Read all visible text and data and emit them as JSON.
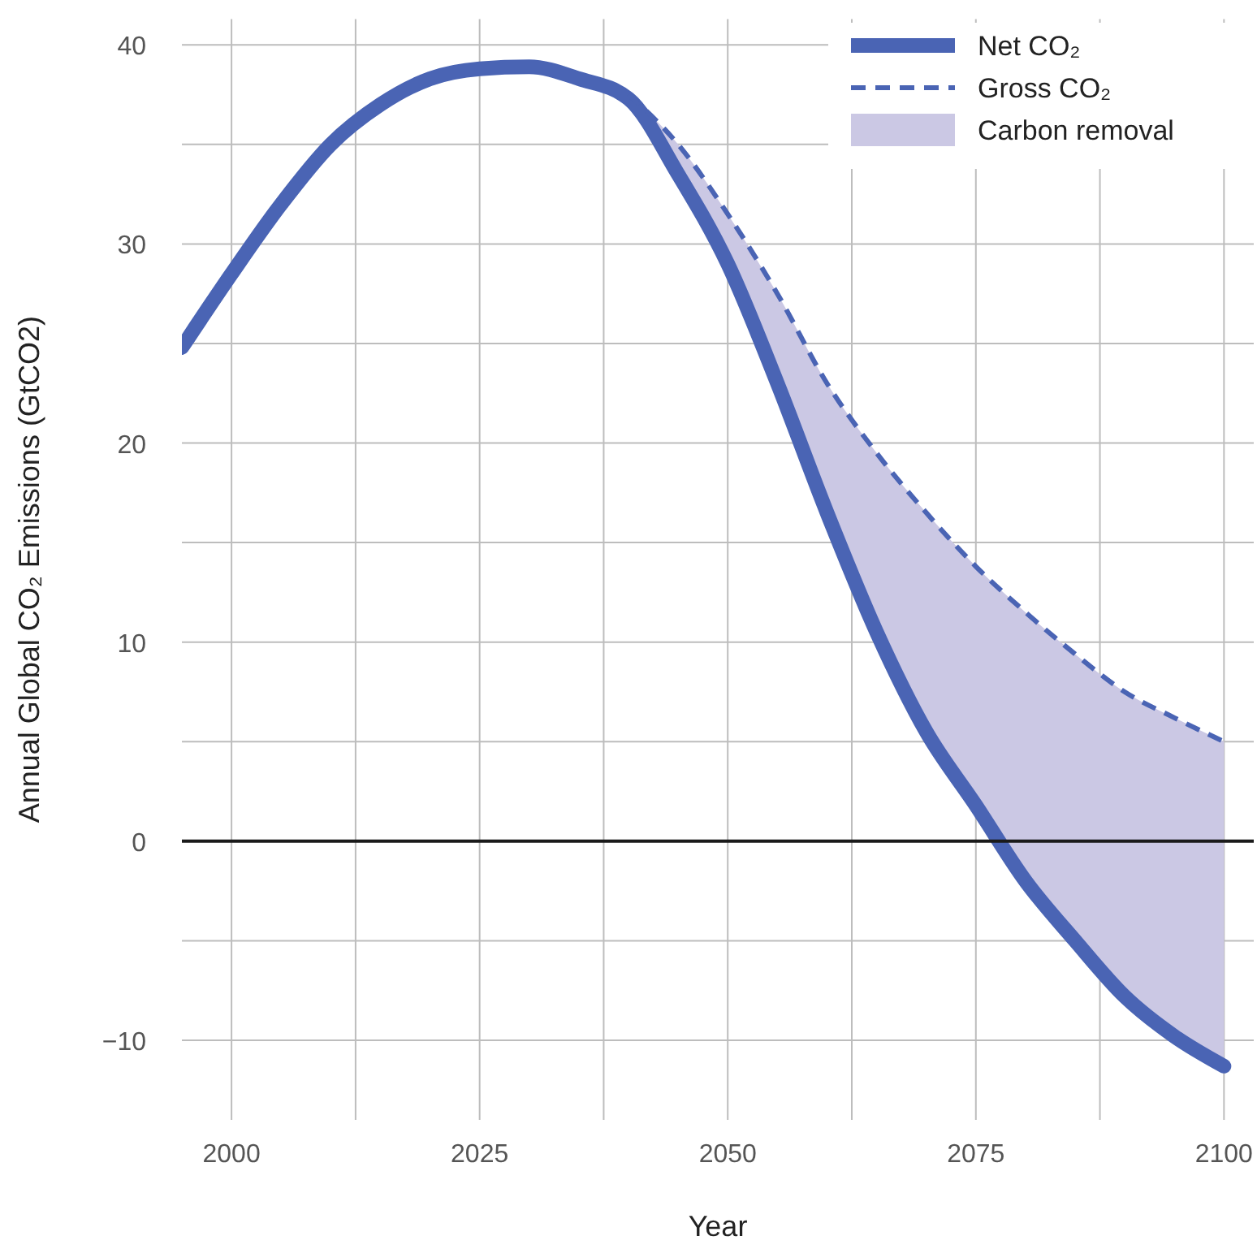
{
  "chart_data": {
    "type": "line",
    "xlabel": "Year",
    "ylabel": "Annual Global CO₂ Emissions (GtCO2)",
    "xlim": [
      1995,
      2103
    ],
    "ylim": [
      -14,
      41.3
    ],
    "xticks": [
      2000,
      {
        "value": 2012.5,
        "label": null
      },
      2025,
      {
        "value": 2037.5,
        "label": null
      },
      2050,
      {
        "value": 2062.5,
        "label": null
      },
      2075,
      {
        "value": 2087.5,
        "label": null
      },
      2100
    ],
    "yticks": [
      {
        "value": -10,
        "label": "−10"
      },
      {
        "value": -5,
        "label": null
      },
      0,
      {
        "value": 5,
        "label": null
      },
      10,
      {
        "value": 15,
        "label": null
      },
      20,
      {
        "value": 25,
        "label": null
      },
      30,
      {
        "value": 35,
        "label": null
      },
      40
    ],
    "grid": true,
    "legend": "top right",
    "ref_lines": [
      {
        "axis": "y",
        "value": 0,
        "color": "#1a1a1a"
      }
    ],
    "series": [
      {
        "name": "Net CO₂",
        "color": "#4a64b4",
        "line_style": "solid",
        "x": [
          1995,
          2000,
          2005,
          2010,
          2015,
          2020,
          2025,
          2030,
          2035,
          2040,
          2045,
          2050,
          2055,
          2060,
          2065,
          2070,
          2075,
          2080,
          2085,
          2090,
          2095,
          2100
        ],
        "values": [
          24.8,
          28.5,
          32,
          35,
          37,
          38.3,
          38.8,
          38.9,
          38.3,
          37.3,
          33.5,
          29,
          23,
          16.5,
          10.5,
          5.5,
          1.8,
          -2,
          -5,
          -7.8,
          -9.8,
          -11.3
        ]
      },
      {
        "name": "Gross CO₂",
        "color": "#4a64b4",
        "line_style": "dashed",
        "x": [
          2040,
          2045,
          2050,
          2055,
          2060,
          2065,
          2070,
          2075,
          2080,
          2085,
          2090,
          2095,
          2100
        ],
        "values": [
          37.5,
          35,
          31.5,
          27.5,
          23,
          19.5,
          16.5,
          13.8,
          11.5,
          9.4,
          7.5,
          6.2,
          5
        ]
      },
      {
        "name": "Carbon removal",
        "type": "area",
        "color": "#cbc8e4",
        "x": [
          2040,
          2045,
          2050,
          2055,
          2060,
          2065,
          2070,
          2075,
          2080,
          2085,
          2090,
          2095,
          2100
        ],
        "values": [
          null,
          null,
          null,
          null,
          null,
          null,
          null,
          null,
          null,
          null,
          null,
          null,
          null
        ],
        "lower": [
          37.3,
          33.5,
          29,
          23,
          16.5,
          10.5,
          5.5,
          1.8,
          -2,
          -5,
          -7.8,
          -9.8,
          -11.3
        ],
        "upper": [
          37.5,
          35,
          31.5,
          27.5,
          23,
          19.5,
          16.5,
          13.8,
          11.5,
          9.4,
          7.5,
          6.2,
          5
        ]
      }
    ]
  }
}
